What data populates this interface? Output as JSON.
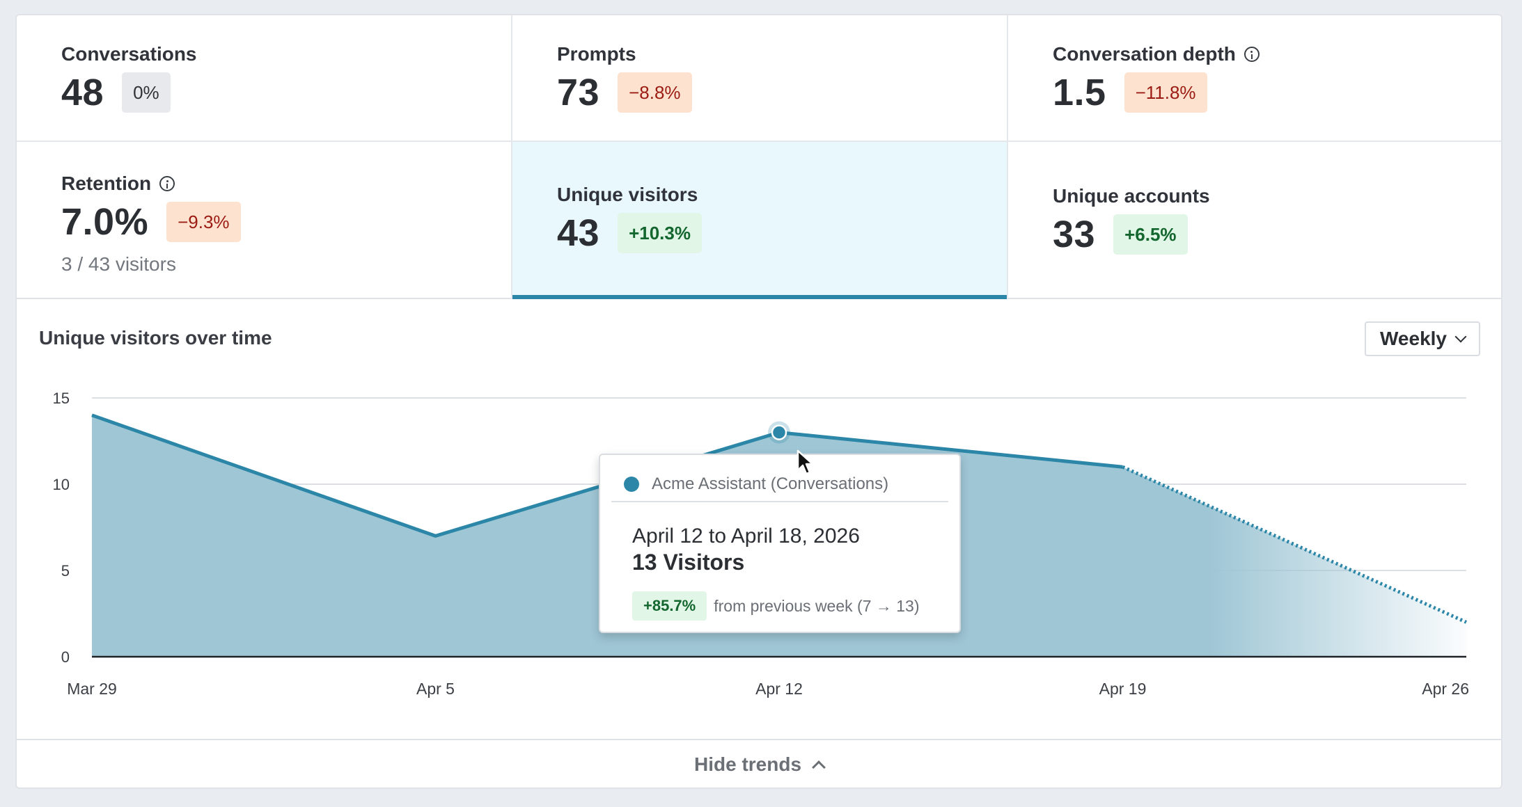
{
  "metrics": [
    {
      "label": "Conversations",
      "value": "48",
      "change": "0%",
      "tone": "neutral",
      "info": false
    },
    {
      "label": "Prompts",
      "value": "73",
      "change": "−8.8%",
      "tone": "neg",
      "info": false
    },
    {
      "label": "Conversation depth",
      "value": "1.5",
      "change": "−11.8%",
      "tone": "neg",
      "info": true
    },
    {
      "label": "Retention",
      "value": "7.0%",
      "change": "−9.3%",
      "tone": "neg",
      "info": true,
      "sub": "3 / 43 visitors"
    },
    {
      "label": "Unique visitors",
      "value": "43",
      "change": "+10.3%",
      "tone": "pos",
      "info": false,
      "selected": true
    },
    {
      "label": "Unique accounts",
      "value": "33",
      "change": "+6.5%",
      "tone": "pos",
      "info": false
    }
  ],
  "chart_title": "Unique visitors over time",
  "period_select": {
    "selected": "Weekly"
  },
  "chart_data": {
    "type": "area",
    "title": "Unique visitors over time",
    "x": [
      "Mar 29",
      "Apr 5",
      "Apr 12",
      "Apr 19",
      "Apr 26"
    ],
    "series": [
      {
        "name": "Acme Assistant (Conversations)",
        "values": [
          14,
          7,
          13,
          11,
          2
        ]
      }
    ],
    "ylim": [
      0,
      15
    ],
    "yticks": [
      0,
      5,
      10,
      15
    ],
    "grid": true,
    "projected_from": "Apr 19",
    "color": "#2b86a7",
    "fill": "#9fc6d5",
    "highlight": "Apr 12"
  },
  "tooltip": {
    "series": "Acme Assistant (Conversations)",
    "date_range": "April 12 to April 18, 2026",
    "value": "13 Visitors",
    "change": "+85.7%",
    "change_text": "from previous week (7 → 13)"
  },
  "hide_trends_label": "Hide trends"
}
